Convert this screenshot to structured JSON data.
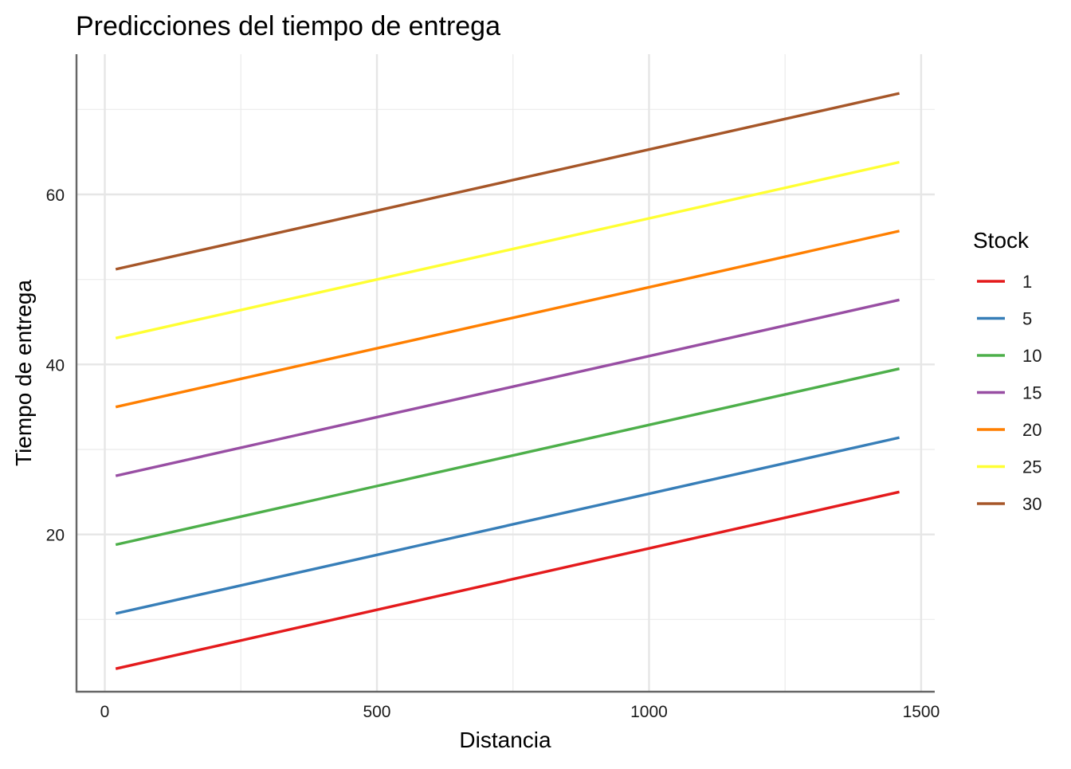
{
  "chart_data": {
    "type": "line",
    "title": "Predicciones del tiempo de entrega",
    "xlabel": "Distancia",
    "ylabel": "Tiempo de entrega",
    "xlim": [
      -52,
      1525
    ],
    "ylim": [
      1.5,
      76.5
    ],
    "x_ticks": [
      0,
      500,
      1000,
      1500
    ],
    "y_ticks": [
      20,
      40,
      60
    ],
    "grid": true,
    "legend": {
      "title": "Stock",
      "position": "right"
    },
    "series": [
      {
        "name": "1",
        "color": "#E41A1C",
        "x": [
          20,
          1460
        ],
        "y": [
          4.2,
          25.0
        ]
      },
      {
        "name": "5",
        "color": "#377EB8",
        "x": [
          20,
          1460
        ],
        "y": [
          10.7,
          31.4
        ]
      },
      {
        "name": "10",
        "color": "#4DAF4A",
        "x": [
          20,
          1460
        ],
        "y": [
          18.8,
          39.5
        ]
      },
      {
        "name": "15",
        "color": "#984EA3",
        "x": [
          20,
          1460
        ],
        "y": [
          26.9,
          47.6
        ]
      },
      {
        "name": "20",
        "color": "#FF7F00",
        "x": [
          20,
          1460
        ],
        "y": [
          35.0,
          55.7
        ]
      },
      {
        "name": "25",
        "color": "#FFFF33",
        "x": [
          20,
          1460
        ],
        "y": [
          43.1,
          63.8
        ]
      },
      {
        "name": "30",
        "color": "#A65628",
        "x": [
          20,
          1460
        ],
        "y": [
          51.2,
          71.9
        ]
      }
    ]
  }
}
